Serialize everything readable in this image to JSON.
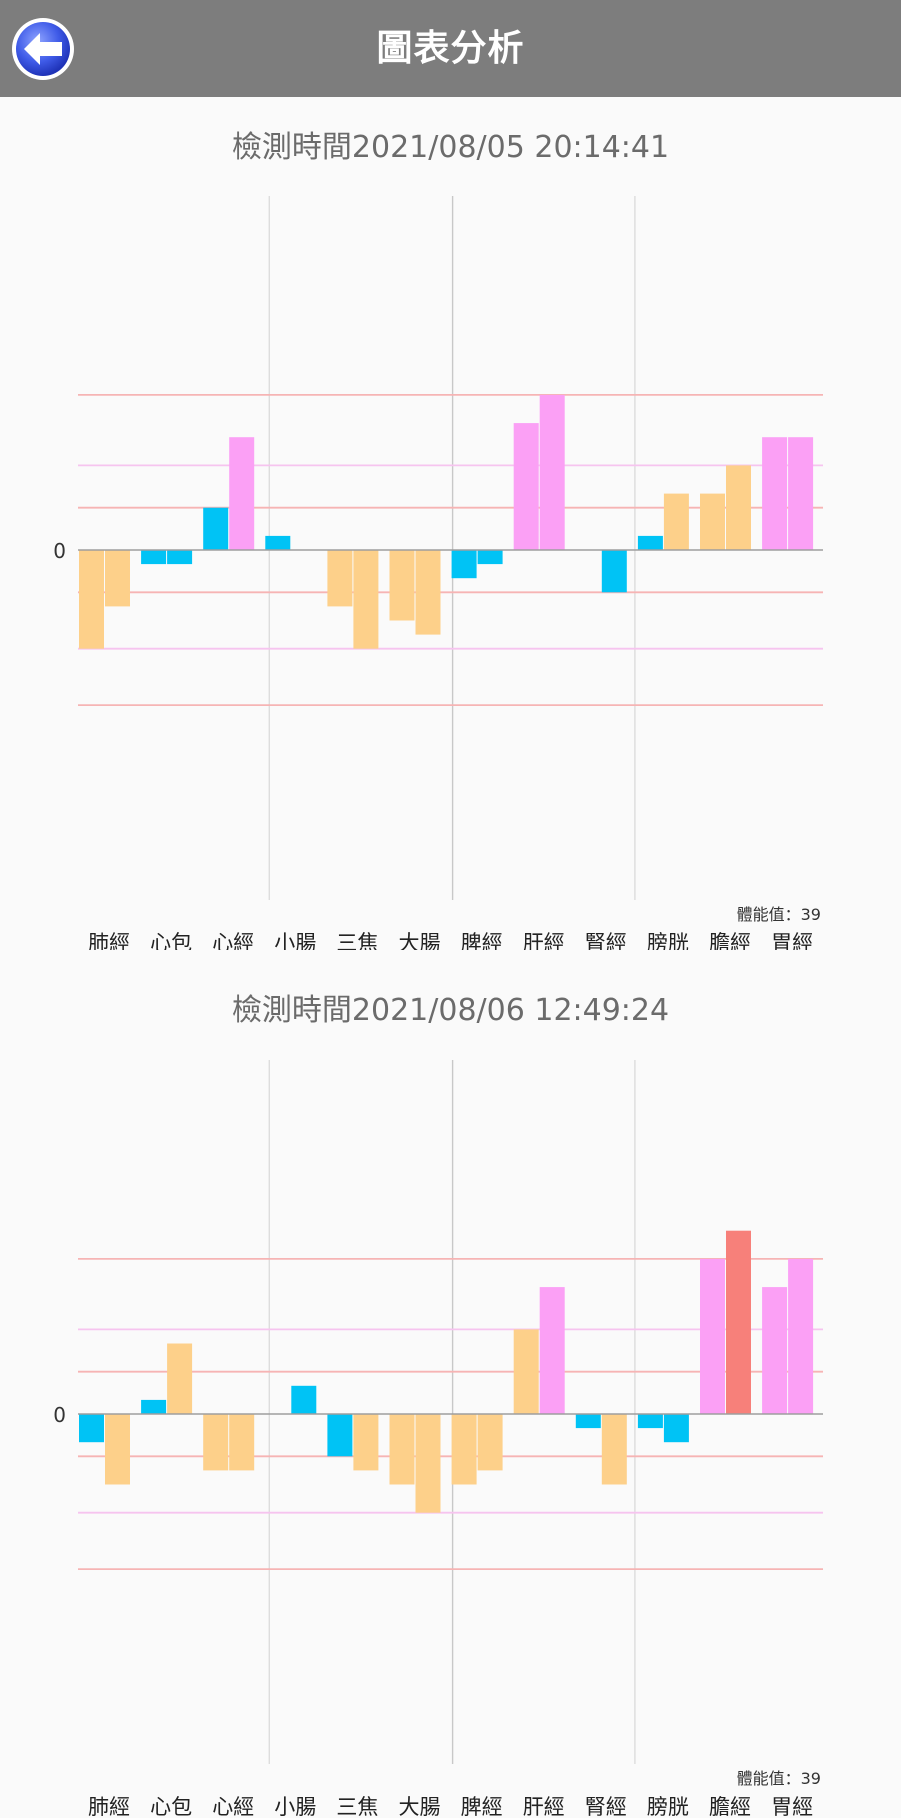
{
  "header": {
    "title": "圖表分析",
    "back_icon": "back-arrow-icon"
  },
  "colors": {
    "orange": "#fdd08a",
    "blue": "#00c3f5",
    "pink": "#fba0f5",
    "red": "#f7807a",
    "divider": "#dddddd",
    "refline_red": "#f6b4b4",
    "refline_pink": "#f6c4ef",
    "zero": "#9e9e9e"
  },
  "chart_data": [
    {
      "type": "bar",
      "title": "檢測時間2021/08/05 20:14:41",
      "categories": [
        "肺經",
        "心包",
        "心經",
        "小腸",
        "三焦",
        "大腸",
        "脾經",
        "肝經",
        "腎經",
        "膀胱",
        "膽經",
        "胃經"
      ],
      "bars_per_category": 2,
      "values": [
        [
          -7,
          -4
        ],
        [
          -1,
          -1
        ],
        [
          3,
          8
        ],
        [
          1,
          0
        ],
        [
          -4,
          -7
        ],
        [
          -5,
          -6
        ],
        [
          -2,
          -1
        ],
        [
          9,
          11
        ],
        [
          0,
          -3
        ],
        [
          1,
          4
        ],
        [
          4,
          6
        ],
        [
          8,
          8
        ]
      ],
      "bar_colors": [
        [
          "orange",
          "orange"
        ],
        [
          "blue",
          "blue"
        ],
        [
          "blue",
          "pink"
        ],
        [
          "blue",
          "blue"
        ],
        [
          "orange",
          "orange"
        ],
        [
          "orange",
          "orange"
        ],
        [
          "blue",
          "blue"
        ],
        [
          "pink",
          "pink"
        ],
        [
          "blue",
          "blue"
        ],
        [
          "blue",
          "orange"
        ],
        [
          "orange",
          "orange"
        ],
        [
          "pink",
          "pink"
        ]
      ],
      "zero_label": "0",
      "vital_label": "體能值：39",
      "ylim": [
        -25,
        25
      ]
    },
    {
      "type": "bar",
      "title": "檢測時間2021/08/06 12:49:24",
      "categories": [
        "肺經",
        "心包",
        "心經",
        "小腸",
        "三焦",
        "大腸",
        "脾經",
        "肝經",
        "腎經",
        "膀胱",
        "膽經",
        "胃經"
      ],
      "bars_per_category": 2,
      "values": [
        [
          -2,
          -5
        ],
        [
          1,
          5
        ],
        [
          -4,
          -4
        ],
        [
          0,
          2
        ],
        [
          -3,
          -4
        ],
        [
          -5,
          -7
        ],
        [
          -5,
          -4
        ],
        [
          6,
          9
        ],
        [
          -1,
          -5
        ],
        [
          -1,
          -2
        ],
        [
          11,
          13
        ],
        [
          9,
          11
        ]
      ],
      "bar_colors": [
        [
          "blue",
          "orange"
        ],
        [
          "blue",
          "orange"
        ],
        [
          "orange",
          "orange"
        ],
        [
          "blue",
          "blue"
        ],
        [
          "blue",
          "orange"
        ],
        [
          "orange",
          "orange"
        ],
        [
          "orange",
          "orange"
        ],
        [
          "orange",
          "pink"
        ],
        [
          "blue",
          "orange"
        ],
        [
          "blue",
          "blue"
        ],
        [
          "pink",
          "red"
        ],
        [
          "pink",
          "pink"
        ]
      ],
      "zero_label": "0",
      "vital_label": "體能值：39",
      "ylim": [
        -25,
        25
      ]
    }
  ]
}
